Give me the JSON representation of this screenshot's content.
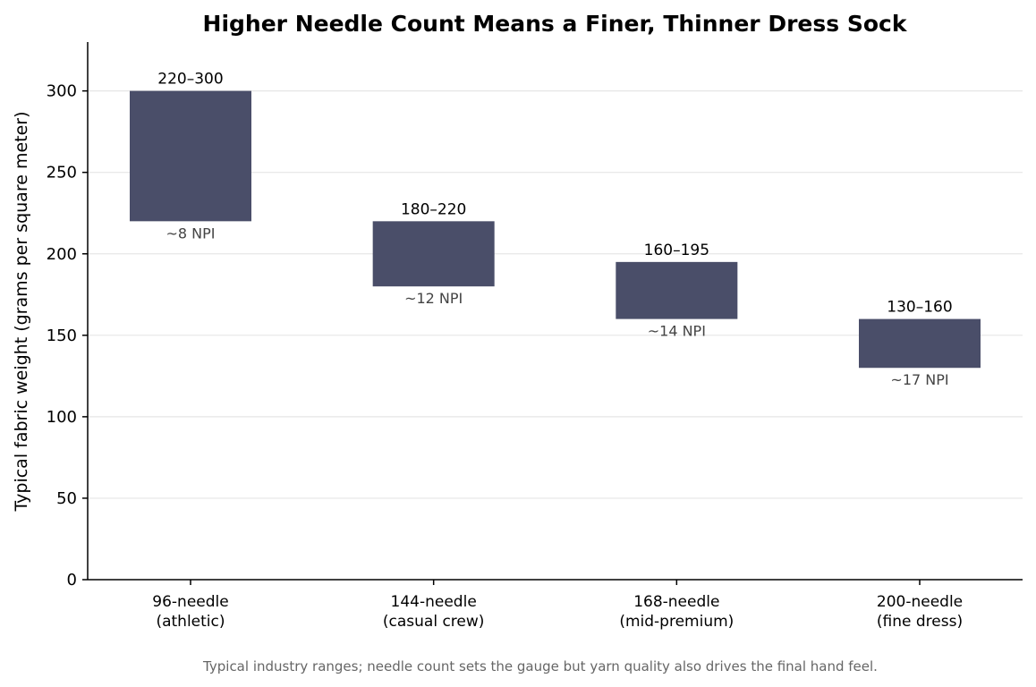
{
  "colors": {
    "bar": "#4a4e69",
    "npi_text": "#444444",
    "caption_text": "#666666",
    "grid": "#e6e6e6"
  },
  "caption": "Typical industry ranges; needle count sets the gauge but yarn quality also drives the final hand feel.",
  "chart_data": {
    "type": "bar",
    "title": "Higher Needle Count Means a Finer, Thinner Dress Sock",
    "xlabel": "",
    "ylabel": "Typical fabric weight (grams per square meter)",
    "ylim": [
      0,
      330
    ],
    "yticks": [
      0,
      50,
      100,
      150,
      200,
      250,
      300
    ],
    "grid": "horizontal",
    "legend": "none",
    "categories": [
      [
        "96-needle",
        "(athletic)"
      ],
      [
        "144-needle",
        "(casual crew)"
      ],
      [
        "168-needle",
        "(mid-premium)"
      ],
      [
        "200-needle",
        "(fine dress)"
      ]
    ],
    "ranges": [
      [
        220,
        300
      ],
      [
        180,
        220
      ],
      [
        160,
        195
      ],
      [
        130,
        160
      ]
    ],
    "range_labels": [
      "220–300",
      "180–220",
      "160–195",
      "130–160"
    ],
    "npi_labels": [
      "~8 NPI",
      "~12 NPI",
      "~14 NPI",
      "~17 NPI"
    ]
  }
}
